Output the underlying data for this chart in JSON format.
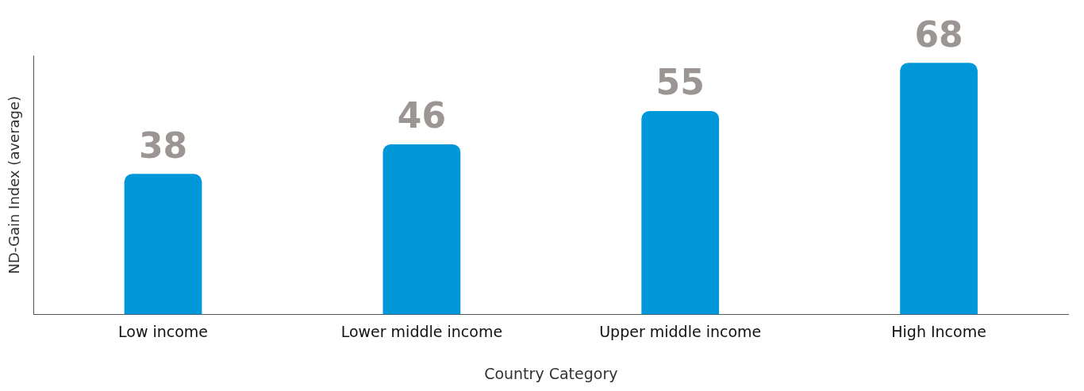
{
  "chart_data": {
    "type": "bar",
    "xlabel": "Country Category",
    "ylabel": "ND-Gain Index (average)",
    "categories": [
      "Low income",
      "Lower middle income",
      "Upper middle income",
      "High Income"
    ],
    "values": [
      38,
      46,
      55,
      68
    ],
    "color": "#0098d8",
    "data_labels": true,
    "grid": false,
    "legend": false,
    "tick_labels": "x"
  }
}
